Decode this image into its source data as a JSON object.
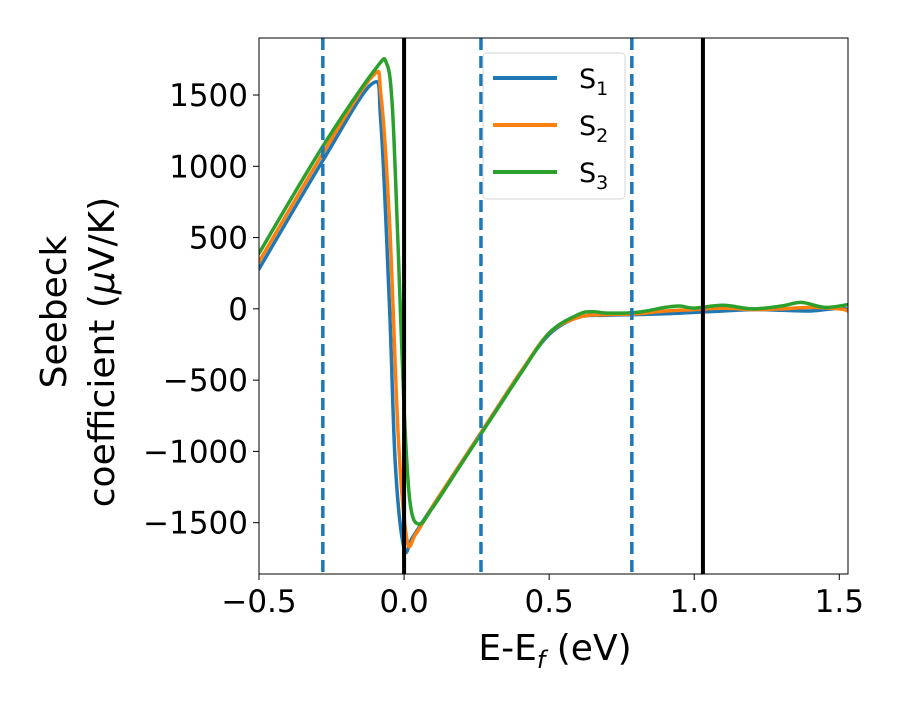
{
  "chart_data": {
    "type": "line",
    "xlabel": "E-E",
    "xlabel_subscript": "f",
    "xlabel_unit": " (eV)",
    "ylabel_line1": "Seebeck",
    "ylabel_line2_prefix": "coefficient  (",
    "ylabel_line2_mu": "μ",
    "ylabel_line2_suffix": "V/K)",
    "xlim": [
      -0.5,
      1.53
    ],
    "ylim": [
      -1860,
      1900
    ],
    "xticks": [
      -0.5,
      0.0,
      0.5,
      1.0,
      1.5
    ],
    "xtick_labels": [
      "−0.5",
      "0.0",
      "0.5",
      "1.0",
      "1.5"
    ],
    "yticks": [
      -1500,
      -1000,
      -500,
      0,
      500,
      1000,
      1500
    ],
    "ytick_labels": [
      "−1500",
      "−1000",
      "−500",
      "0",
      "500",
      "1000",
      "1500"
    ],
    "grid": false,
    "legend_position": "top-center",
    "vlines_solid": [
      0.0,
      1.03
    ],
    "vlines_dashed": [
      -0.28,
      0.265,
      0.785
    ],
    "vline_solid_color": "#000000",
    "vline_dashed_color": "#1f77b4",
    "series": [
      {
        "name": "S",
        "subscript": "1",
        "color": "#1f77b4",
        "x": [
          -0.5,
          -0.28,
          -0.11,
          -0.08,
          -0.05,
          -0.03,
          0.0,
          0.03,
          0.1,
          0.2,
          0.3,
          0.4,
          0.5,
          0.6,
          0.7,
          0.8,
          0.9,
          1.0,
          1.1,
          1.2,
          1.3,
          1.4,
          1.5,
          1.53
        ],
        "y": [
          280,
          1040,
          1580,
          1300,
          0,
          -1100,
          -1680,
          -1600,
          -1380,
          -1070,
          -760,
          -450,
          -180,
          -60,
          -45,
          -40,
          -35,
          -25,
          -15,
          -5,
          -10,
          -15,
          5,
          -5
        ]
      },
      {
        "name": "S",
        "subscript": "2",
        "color": "#ff7f0e",
        "x": [
          -0.5,
          -0.28,
          -0.11,
          -0.08,
          -0.05,
          -0.02,
          0.01,
          0.04,
          0.1,
          0.2,
          0.3,
          0.4,
          0.5,
          0.6,
          0.7,
          0.8,
          0.9,
          1.0,
          1.1,
          1.2,
          1.3,
          1.4,
          1.5,
          1.53
        ],
        "y": [
          330,
          1090,
          1630,
          1500,
          600,
          -900,
          -1620,
          -1580,
          -1380,
          -1070,
          -760,
          -450,
          -170,
          -60,
          -40,
          -35,
          -15,
          -5,
          5,
          -5,
          0,
          10,
          0,
          -15
        ]
      },
      {
        "name": "S",
        "subscript": "3",
        "color": "#2ca02c",
        "x": [
          -0.5,
          -0.28,
          -0.1,
          -0.06,
          -0.04,
          -0.02,
          0.0,
          0.02,
          0.05,
          0.1,
          0.2,
          0.3,
          0.4,
          0.5,
          0.6,
          0.65,
          0.7,
          0.8,
          0.9,
          0.95,
          1.0,
          1.1,
          1.2,
          1.3,
          1.37,
          1.45,
          1.53
        ],
        "y": [
          390,
          1140,
          1680,
          1720,
          1400,
          400,
          -700,
          -1350,
          -1510,
          -1390,
          -1080,
          -770,
          -460,
          -170,
          -40,
          -20,
          -30,
          -25,
          10,
          20,
          5,
          25,
          0,
          20,
          45,
          10,
          30
        ]
      }
    ]
  }
}
